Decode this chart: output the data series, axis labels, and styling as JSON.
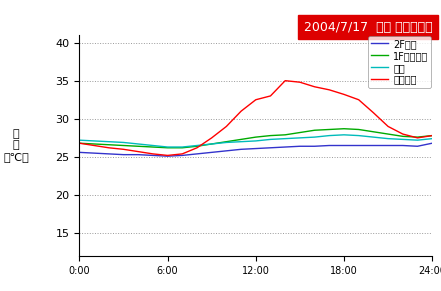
{
  "title": "2004/7/17  温度 推移グラフ",
  "title_bg": "#dd0000",
  "title_fg": "#ffffff",
  "xlabel_ticks": [
    "0:00",
    "6:00",
    "12:00",
    "18:00",
    "24:00"
  ],
  "x_hours": [
    0,
    1,
    2,
    3,
    4,
    5,
    6,
    7,
    8,
    9,
    10,
    11,
    12,
    13,
    14,
    15,
    16,
    17,
    18,
    19,
    20,
    21,
    22,
    23,
    24
  ],
  "series_order": [
    "2F寝室",
    "1Fリビング",
    "玄関",
    "外気温度"
  ],
  "series": {
    "2F寝室": {
      "color": "#3333cc",
      "data": [
        25.6,
        25.5,
        25.4,
        25.3,
        25.3,
        25.2,
        25.1,
        25.2,
        25.4,
        25.6,
        25.8,
        26.0,
        26.1,
        26.2,
        26.3,
        26.4,
        26.4,
        26.5,
        26.5,
        26.5,
        26.5,
        26.5,
        26.5,
        26.4,
        26.8
      ]
    },
    "1Fリビング": {
      "color": "#00aa00",
      "data": [
        26.8,
        26.7,
        26.6,
        26.5,
        26.4,
        26.3,
        26.2,
        26.2,
        26.4,
        26.7,
        27.0,
        27.3,
        27.6,
        27.8,
        27.9,
        28.2,
        28.5,
        28.6,
        28.7,
        28.6,
        28.3,
        28.0,
        27.7,
        27.6,
        27.8
      ]
    },
    "玄関": {
      "color": "#00bbbb",
      "data": [
        27.2,
        27.1,
        27.0,
        26.9,
        26.7,
        26.5,
        26.3,
        26.3,
        26.5,
        26.7,
        26.9,
        27.0,
        27.1,
        27.3,
        27.4,
        27.5,
        27.6,
        27.8,
        27.9,
        27.8,
        27.6,
        27.4,
        27.3,
        27.2,
        27.4
      ]
    },
    "外気温度": {
      "color": "#ff0000",
      "data": [
        26.8,
        26.5,
        26.2,
        26.0,
        25.7,
        25.4,
        25.2,
        25.4,
        26.2,
        27.5,
        29.0,
        31.0,
        32.5,
        33.0,
        35.0,
        34.8,
        34.2,
        33.8,
        33.2,
        32.5,
        30.8,
        29.0,
        28.0,
        27.5,
        27.8
      ]
    }
  },
  "ylim": [
    12,
    41
  ],
  "yticks": [
    15,
    20,
    25,
    30,
    35,
    40
  ],
  "figsize": [
    4.41,
    2.91
  ],
  "dpi": 100
}
